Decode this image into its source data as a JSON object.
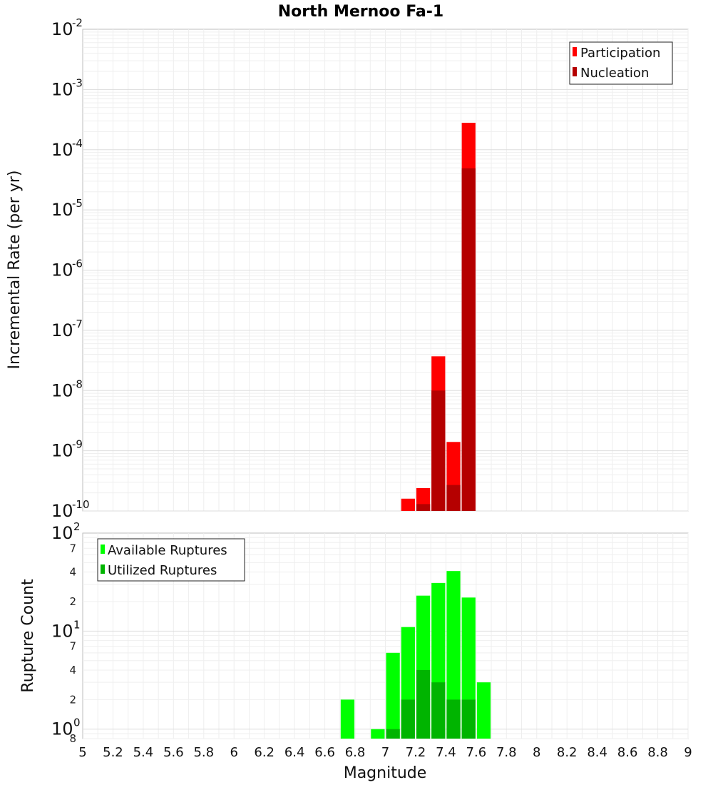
{
  "chart_data": [
    {
      "type": "bar",
      "title": "North Mernoo Fa-1",
      "xlabel": "Magnitude",
      "ylabel": "Incremental Rate (per yr)",
      "yscale": "log",
      "xlim": [
        5,
        9
      ],
      "ylim": [
        1e-10,
        0.01
      ],
      "bin_width": 0.1,
      "x_ticks": [
        "5",
        "5.2",
        "5.4",
        "5.6",
        "5.8",
        "6",
        "6.2",
        "6.4",
        "6.6",
        "6.8",
        "7",
        "7.2",
        "7.4",
        "7.6",
        "7.8",
        "8",
        "8.2",
        "8.4",
        "8.6",
        "8.8",
        "9"
      ],
      "y_ticks": [
        {
          "base": "10",
          "exp": "-10"
        },
        {
          "base": "10",
          "exp": "-9"
        },
        {
          "base": "10",
          "exp": "-8"
        },
        {
          "base": "10",
          "exp": "-7"
        },
        {
          "base": "10",
          "exp": "-6"
        },
        {
          "base": "10",
          "exp": "-5"
        },
        {
          "base": "10",
          "exp": "-4"
        },
        {
          "base": "10",
          "exp": "-3"
        },
        {
          "base": "10",
          "exp": "-2"
        }
      ],
      "legend_position": "top-right",
      "series": [
        {
          "name": "Participation",
          "color": "#ff0000",
          "x": [
            7.15,
            7.25,
            7.35,
            7.45,
            7.55
          ],
          "values": [
            1.6e-10,
            2.4e-10,
            3.7e-08,
            1.4e-09,
            0.00028
          ]
        },
        {
          "name": "Nucleation",
          "color": "#b50000",
          "x": [
            7.25,
            7.35,
            7.45,
            7.55
          ],
          "values": [
            1.3e-10,
            1e-08,
            2.7e-10,
            4.9e-05
          ]
        }
      ]
    },
    {
      "type": "bar",
      "title": "",
      "xlabel": "Magnitude",
      "ylabel": "Rupture Count",
      "yscale": "log",
      "xlim": [
        5,
        9
      ],
      "ylim": [
        0.8,
        100
      ],
      "bin_width": 0.1,
      "y_ticks": [
        {
          "base": "10",
          "exp": "0",
          "value": 1
        },
        {
          "base": "10",
          "exp": "1",
          "value": 10
        },
        {
          "base": "10",
          "exp": "2",
          "value": 100
        }
      ],
      "y_minor_ticks": [
        {
          "label": "8",
          "value": 0.8
        },
        {
          "label": "2",
          "value": 2
        },
        {
          "label": "4",
          "value": 4
        },
        {
          "label": "7",
          "value": 7
        },
        {
          "label": "2",
          "value": 20
        },
        {
          "label": "4",
          "value": 40
        },
        {
          "label": "7",
          "value": 70
        }
      ],
      "legend_position": "top-left",
      "series": [
        {
          "name": "Available Ruptures",
          "color": "#00ff00",
          "x": [
            6.75,
            6.95,
            7.05,
            7.15,
            7.25,
            7.35,
            7.45,
            7.55,
            7.65
          ],
          "values": [
            2,
            1,
            6,
            11,
            23,
            31,
            41,
            22,
            3
          ]
        },
        {
          "name": "Utilized Ruptures",
          "color": "#00b400",
          "x": [
            7.05,
            7.15,
            7.25,
            7.35,
            7.45,
            7.55
          ],
          "values": [
            1,
            2,
            4,
            3,
            2,
            2
          ]
        }
      ]
    }
  ]
}
